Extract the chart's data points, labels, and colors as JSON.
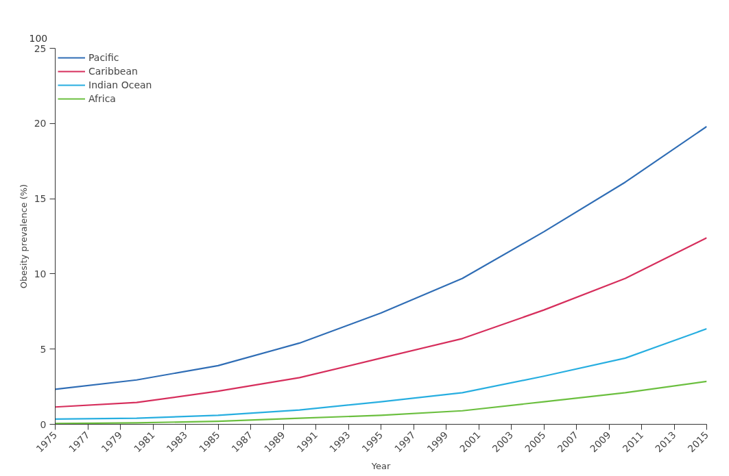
{
  "chart_data": {
    "type": "line",
    "xlabel": "Year",
    "ylabel": "Obesity prevalence (%)",
    "x": [
      1975,
      1980,
      1985,
      1990,
      1995,
      2000,
      2005,
      2010,
      2015
    ],
    "series": [
      {
        "name": "Pacific",
        "color": "#2f6db5",
        "values": [
          2.33,
          2.95,
          3.9,
          5.4,
          7.4,
          9.7,
          12.8,
          16.1,
          19.8
        ]
      },
      {
        "name": "Caribbean",
        "color": "#d62e5c",
        "values": [
          1.15,
          1.45,
          2.2,
          3.1,
          4.4,
          5.7,
          7.6,
          9.7,
          12.4
        ]
      },
      {
        "name": "Indian Ocean",
        "color": "#27aee0",
        "values": [
          0.35,
          0.4,
          0.6,
          0.95,
          1.5,
          2.1,
          3.2,
          4.4,
          6.35
        ]
      },
      {
        "name": "Africa",
        "color": "#6bbf3f",
        "values": [
          0.05,
          0.1,
          0.2,
          0.4,
          0.6,
          0.9,
          1.5,
          2.1,
          2.85
        ]
      }
    ],
    "xlim": [
      1975,
      2015
    ],
    "xticks": [
      1975,
      1977,
      1979,
      1981,
      1983,
      1985,
      1987,
      1989,
      1991,
      1993,
      1995,
      1997,
      1999,
      2001,
      2003,
      2005,
      2007,
      2009,
      2011,
      2013,
      2015
    ],
    "ylim": [
      0,
      25
    ],
    "yticks": [
      0,
      5,
      10,
      15,
      20,
      25
    ],
    "annotations": [
      "100"
    ],
    "grid": false,
    "legend": "top left",
    "marker": "none",
    "line_style": "solid"
  }
}
